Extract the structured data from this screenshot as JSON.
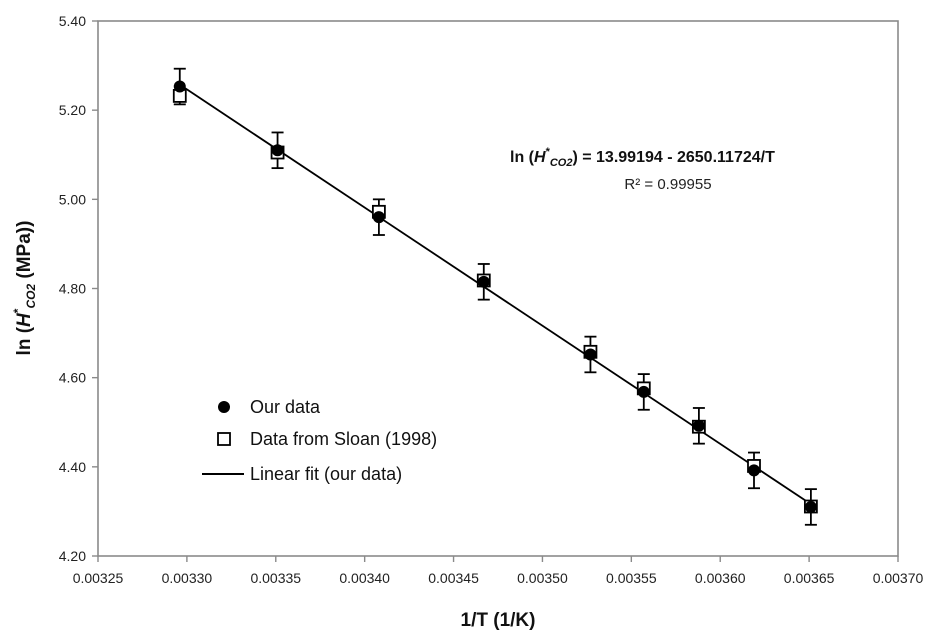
{
  "chart_data": {
    "type": "scatter",
    "xlabel": "1/T (1/K)",
    "ylabel_parts": {
      "prefix": "ln (",
      "symbol": "H",
      "sup": "*",
      "sub": "CO2",
      "suffix": " (MPa))"
    },
    "xlim": [
      0.00325,
      0.0037
    ],
    "ylim": [
      4.2,
      5.4
    ],
    "x_ticks": [
      "0.00325",
      "0.00330",
      "0.00335",
      "0.00340",
      "0.00345",
      "0.00350",
      "0.00355",
      "0.00360",
      "0.00365",
      "0.00370"
    ],
    "y_ticks": [
      "4.20",
      "4.40",
      "4.60",
      "4.80",
      "5.00",
      "5.20",
      "5.40"
    ],
    "grid": false,
    "series": [
      {
        "name": "Our data",
        "marker": "filled-circle",
        "points": [
          {
            "x": 0.003296,
            "y": 5.253,
            "err": 0.04
          },
          {
            "x": 0.003351,
            "y": 5.11,
            "err": 0.04
          },
          {
            "x": 0.003408,
            "y": 4.96,
            "err": 0.04
          },
          {
            "x": 0.003467,
            "y": 4.815,
            "err": 0.04
          },
          {
            "x": 0.003527,
            "y": 4.652,
            "err": 0.04
          },
          {
            "x": 0.003557,
            "y": 4.568,
            "err": 0.04
          },
          {
            "x": 0.003588,
            "y": 4.492,
            "err": 0.04
          },
          {
            "x": 0.003619,
            "y": 4.392,
            "err": 0.04
          },
          {
            "x": 0.003651,
            "y": 4.31,
            "err": 0.04
          }
        ]
      },
      {
        "name": "Data from Sloan (1998)",
        "marker": "open-square",
        "points": [
          {
            "x": 0.003296,
            "y": 5.232
          },
          {
            "x": 0.003351,
            "y": 5.105
          },
          {
            "x": 0.003408,
            "y": 4.972
          },
          {
            "x": 0.003467,
            "y": 4.818
          },
          {
            "x": 0.003527,
            "y": 4.658
          },
          {
            "x": 0.003557,
            "y": 4.576
          },
          {
            "x": 0.003588,
            "y": 4.49
          },
          {
            "x": 0.003619,
            "y": 4.402
          },
          {
            "x": 0.003651,
            "y": 4.311
          }
        ]
      },
      {
        "name": "Linear fit (our data)",
        "marker": "line",
        "intercept": 13.99194,
        "slope": -2650.11724,
        "x_range": [
          0.003296,
          0.003651
        ]
      }
    ],
    "annotation": {
      "equation_parts": {
        "prefix": "ln (",
        "symbol": "H",
        "sup": "*",
        "sub": "CO2",
        "suffix": ") = 13.99194 - 2650.11724/T"
      },
      "r2": "R² = 0.99955"
    },
    "legend_position": "lower-left"
  },
  "colors": {
    "axis": "#8a8a8a",
    "marker": "#000000",
    "background": "#ffffff"
  }
}
